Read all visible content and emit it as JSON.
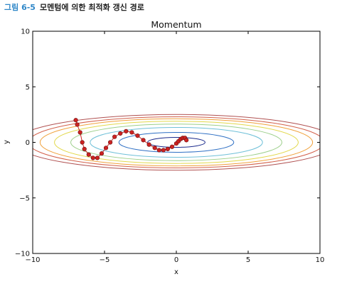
{
  "caption": {
    "figure_number": "그림 6-5",
    "text": "모멘텀에 의한 최적화 갱신 경로"
  },
  "chart_data": {
    "type": "line",
    "title": "Momentum",
    "xlabel": "x",
    "ylabel": "y",
    "xlim": [
      -10,
      10
    ],
    "ylim": [
      -10,
      10
    ],
    "x_ticks": [
      -10,
      -5,
      0,
      5,
      10
    ],
    "y_ticks": [
      -10,
      -5,
      0,
      5,
      10
    ],
    "x_tick_labels": [
      "−10",
      "−5",
      "0",
      "5",
      "10"
    ],
    "y_tick_labels": [
      "−10",
      "−5",
      "0",
      "5",
      "10"
    ],
    "grid": false,
    "contour": {
      "function": "x^2/20 + y^2",
      "levels": [
        0.2,
        0.8,
        1.8,
        2.7,
        3.6,
        4.5,
        5.3,
        6.3
      ],
      "colors": [
        "#1a2a8c",
        "#2e6fc4",
        "#6fc0d8",
        "#9ccf8a",
        "#e2d84a",
        "#f0a03a",
        "#d2604a",
        "#b05050",
        "#7a1e1e"
      ]
    },
    "series": [
      {
        "marker": "circle",
        "color": "#cc2222",
        "x": [
          -7.0,
          -6.9,
          -6.7,
          -6.55,
          -6.4,
          -6.1,
          -5.8,
          -5.5,
          -5.2,
          -4.9,
          -4.6,
          -4.3,
          -3.9,
          -3.5,
          -3.1,
          -2.7,
          -2.3,
          -1.9,
          -1.5,
          -1.2,
          -0.9,
          -0.6,
          -0.3,
          0.0,
          0.15,
          0.3,
          0.45,
          0.6,
          0.7
        ],
        "y": [
          2.0,
          1.6,
          0.9,
          0.0,
          -0.6,
          -1.1,
          -1.4,
          -1.4,
          -1.0,
          -0.5,
          0.0,
          0.5,
          0.8,
          1.0,
          0.9,
          0.6,
          0.2,
          -0.2,
          -0.5,
          -0.7,
          -0.7,
          -0.6,
          -0.4,
          -0.1,
          0.1,
          0.3,
          0.4,
          0.4,
          0.2
        ]
      }
    ]
  }
}
